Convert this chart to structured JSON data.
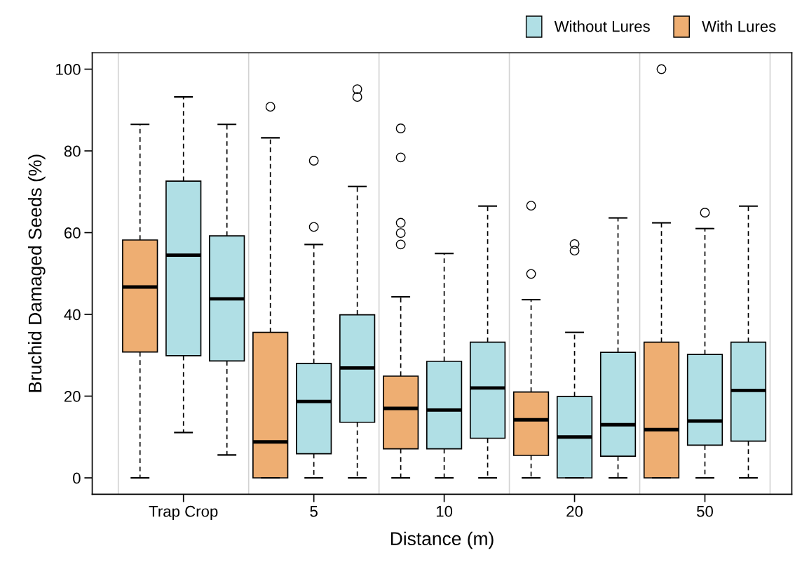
{
  "chart_data": {
    "type": "box",
    "xlabel": "Distance (m)",
    "ylabel": "Bruchid Damaged Seeds (%)",
    "categories": [
      null,
      "Trap Crop",
      null,
      null,
      "5",
      null,
      null,
      "10",
      null,
      null,
      "20",
      null,
      null,
      "50",
      null
    ],
    "ylim": [
      -4,
      104
    ],
    "yticks": [
      0,
      20,
      40,
      60,
      80,
      100
    ],
    "legend": "top right",
    "series": [
      {
        "name": "Without Lures",
        "color": "#b0dfe5",
        "boxes": [
          null,
          {
            "low": 11.1,
            "q1": 29.9,
            "median": 54.5,
            "q3": 72.6,
            "high": 93.2
          },
          {
            "low": 5.6,
            "q1": 28.6,
            "median": 43.8,
            "q3": 59.2,
            "high": 86.5
          },
          null,
          {
            "low": 0,
            "q1": 5.9,
            "median": 18.7,
            "q3": 28.0,
            "high": 57.1,
            "outliers": [
              61.4,
              77.6
            ]
          },
          {
            "low": 0,
            "q1": 13.6,
            "median": 26.9,
            "q3": 39.9,
            "high": 71.3,
            "outliers": [
              93.2,
              95.1
            ]
          },
          null,
          {
            "low": 0,
            "q1": 7.1,
            "median": 16.6,
            "q3": 28.5,
            "high": 54.9
          },
          {
            "low": 0,
            "q1": 9.7,
            "median": 22.0,
            "q3": 33.2,
            "high": 66.5
          },
          null,
          {
            "low": 0,
            "q1": 0,
            "median": 10.0,
            "q3": 19.9,
            "high": 35.6,
            "outliers": [
              55.6,
              57.2
            ]
          },
          {
            "low": 0,
            "q1": 5.3,
            "median": 13.0,
            "q3": 30.7,
            "high": 63.6
          },
          null,
          {
            "low": 0,
            "q1": 8.0,
            "median": 13.9,
            "q3": 30.2,
            "high": 61.0,
            "outliers": [
              64.9
            ]
          },
          {
            "low": 0,
            "q1": 9.0,
            "median": 21.4,
            "q3": 33.2,
            "high": 66.5
          }
        ]
      },
      {
        "name": "With Lures",
        "color": "#eeae72",
        "boxes": [
          {
            "low": 0,
            "q1": 30.8,
            "median": 46.7,
            "q3": 58.2,
            "high": 86.5
          },
          null,
          null,
          {
            "low": 0,
            "q1": 0,
            "median": 8.8,
            "q3": 35.6,
            "high": 83.2,
            "outliers": [
              90.8
            ]
          },
          null,
          null,
          {
            "low": 0,
            "q1": 7.1,
            "median": 17.0,
            "q3": 24.9,
            "high": 44.3,
            "outliers": [
              57.1,
              59.9,
              62.4,
              78.4,
              85.5
            ]
          },
          null,
          null,
          {
            "low": 0,
            "q1": 5.5,
            "median": 14.2,
            "q3": 21.0,
            "high": 43.6,
            "outliers": [
              49.9,
              66.6
            ]
          },
          null,
          null,
          {
            "low": 0,
            "q1": 0,
            "median": 11.8,
            "q3": 33.2,
            "high": 62.4,
            "outliers": [
              100
            ]
          },
          null,
          null
        ]
      }
    ]
  }
}
